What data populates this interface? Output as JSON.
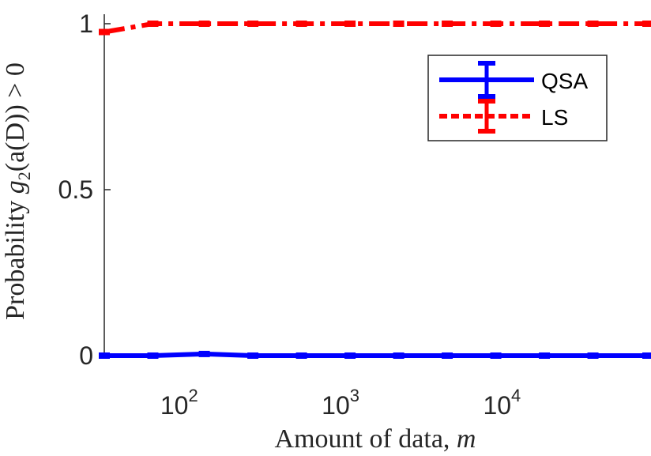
{
  "chart_data": {
    "type": "line",
    "xscale": "log",
    "xlim": [
      30,
      70000
    ],
    "ylim": [
      0,
      1
    ],
    "xlabel_text": "Amount of data, ",
    "xlabel_var": "m",
    "ylabel_text": "Probability ",
    "ylabel_expr": "g",
    "ylabel_sub": "2",
    "ylabel_rest": "(a(D)) > 0",
    "yticks": [
      {
        "value": 0,
        "label": "0"
      },
      {
        "value": 0.5,
        "label": "0.5"
      },
      {
        "value": 1,
        "label": "1"
      }
    ],
    "xticks": [
      {
        "value": 100,
        "base": "10",
        "exp": "2"
      },
      {
        "value": 1000,
        "base": "10",
        "exp": "3"
      },
      {
        "value": 10000,
        "base": "10",
        "exp": "4"
      }
    ],
    "grid": false,
    "legend_position": "top-right",
    "series": [
      {
        "name": "QSA",
        "color": "#0000ff",
        "style": "solid",
        "x": [
          30,
          60,
          125,
          250,
          500,
          1000,
          2000,
          4000,
          8000,
          16000,
          32000,
          70000
        ],
        "y": [
          0.0,
          0.0,
          0.005,
          0.0,
          0.0,
          0.0,
          0.0,
          0.0,
          0.0,
          0.0,
          0.0,
          0.0
        ]
      },
      {
        "name": "LS",
        "color": "#ff0000",
        "style": "dashdot",
        "x": [
          30,
          60,
          125,
          250,
          500,
          1000,
          2000,
          4000,
          8000,
          16000,
          32000,
          70000
        ],
        "y": [
          0.975,
          1.0,
          1.0,
          1.0,
          1.0,
          1.0,
          1.0,
          1.0,
          1.0,
          1.0,
          1.0,
          1.0
        ]
      }
    ]
  }
}
